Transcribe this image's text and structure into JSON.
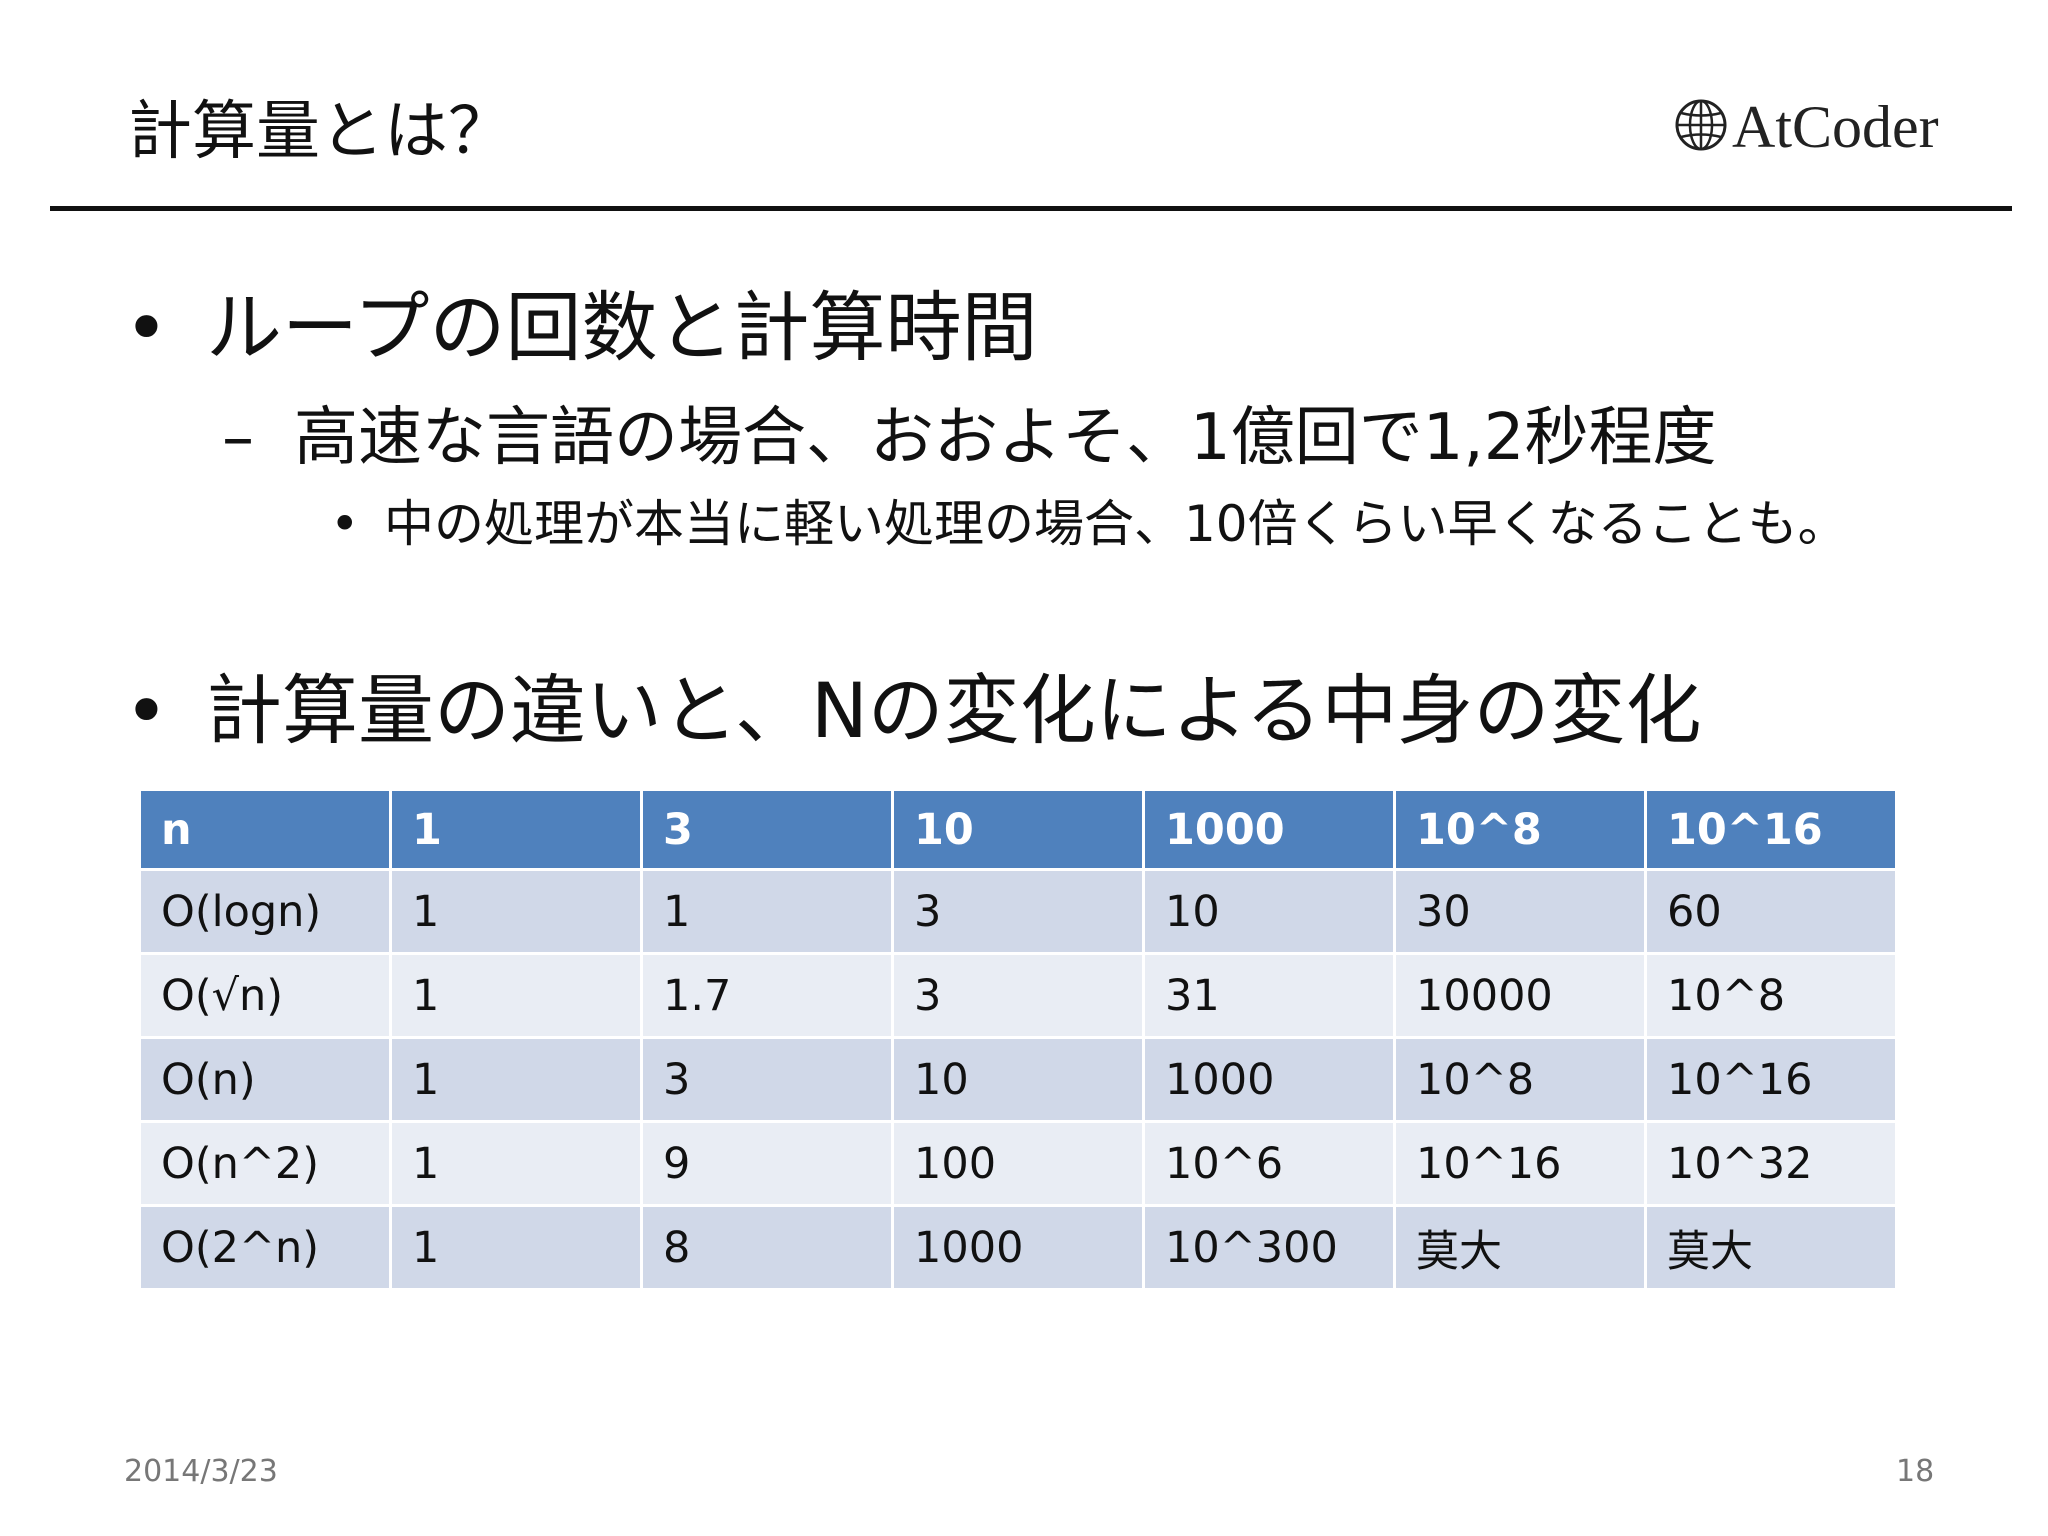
{
  "slide": {
    "title": "計算量とは？"
  },
  "logo": {
    "text": "AtCoder"
  },
  "bullets": {
    "b1": {
      "marker": "•",
      "text": "ループの回数と計算時間"
    },
    "b2": {
      "marker": "–",
      "text": "高速な言語の場合、おおよそ、1億回で1,2秒程度"
    },
    "b3": {
      "marker": "•",
      "text": "中の処理が本当に軽い処理の場合、10倍くらい早くなることも。"
    },
    "b4": {
      "marker": "•",
      "text": "計算量の違いと、Nの変化による中身の変化"
    }
  },
  "table": {
    "header": [
      "n",
      "1",
      "3",
      "10",
      "1000",
      "10^8",
      "10^16"
    ],
    "rows": [
      [
        "O(logn)",
        "1",
        "1",
        "3",
        "10",
        "30",
        "60"
      ],
      [
        "O(√n)",
        "1",
        "1.7",
        "3",
        "31",
        "10000",
        "10^8"
      ],
      [
        "O(n)",
        "1",
        "3",
        "10",
        "1000",
        "10^8",
        "10^16"
      ],
      [
        "O(n^2)",
        "1",
        "9",
        "100",
        "10^6",
        "10^16",
        "10^32"
      ],
      [
        "O(2^n)",
        "1",
        "8",
        "1000",
        "10^300",
        "莫大",
        "莫大"
      ]
    ]
  },
  "footer": {
    "date": "2014/3/23",
    "page": "18"
  },
  "colors": {
    "header_bg": "#4f81bd",
    "row_odd_bg": "#d0d8e8",
    "row_even_bg": "#e9edf4",
    "rule": "#111111"
  }
}
